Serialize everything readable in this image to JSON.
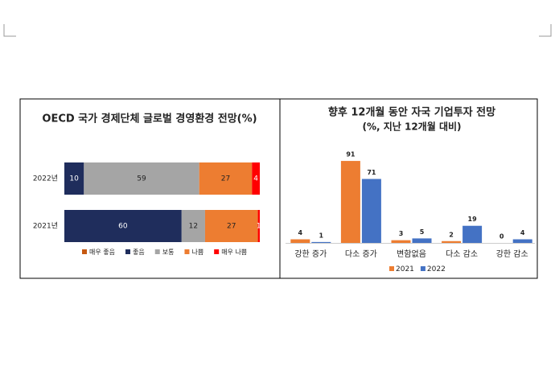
{
  "chart_data": [
    {
      "type": "stacked-bar-h",
      "title": "OECD 국가 경제단체 글로벌 경영환경 전망(%)",
      "categories": [
        "2022년",
        "2021년"
      ],
      "xlim": [
        0,
        100
      ],
      "series": [
        {
          "name": "매우 좋음",
          "color": "#c65911",
          "values": [
            0,
            0
          ]
        },
        {
          "name": "좋음",
          "color": "#1f2d5c",
          "values": [
            10,
            60
          ]
        },
        {
          "name": "보통",
          "color": "#a5a5a5",
          "values": [
            59,
            12
          ]
        },
        {
          "name": "나쁨",
          "color": "#ed7d31",
          "values": [
            27,
            27
          ]
        },
        {
          "name": "매우 나쁨",
          "color": "#ff0000",
          "values": [
            4,
            1
          ]
        }
      ]
    },
    {
      "type": "grouped-bar",
      "title": "향후 12개월 동안 자국 기업투자 전망",
      "subtitle": "(%, 지난 12개월 대비)",
      "categories": [
        "강한 증가",
        "다소 증가",
        "변함없음",
        "다소 감소",
        "강한 감소"
      ],
      "ylim": [
        0,
        100
      ],
      "series": [
        {
          "name": "2021",
          "color": "#ed7d31",
          "values": [
            4,
            91,
            3,
            2,
            0
          ]
        },
        {
          "name": "2022",
          "color": "#4472c4",
          "values": [
            1,
            71,
            5,
            19,
            4
          ]
        }
      ]
    }
  ]
}
